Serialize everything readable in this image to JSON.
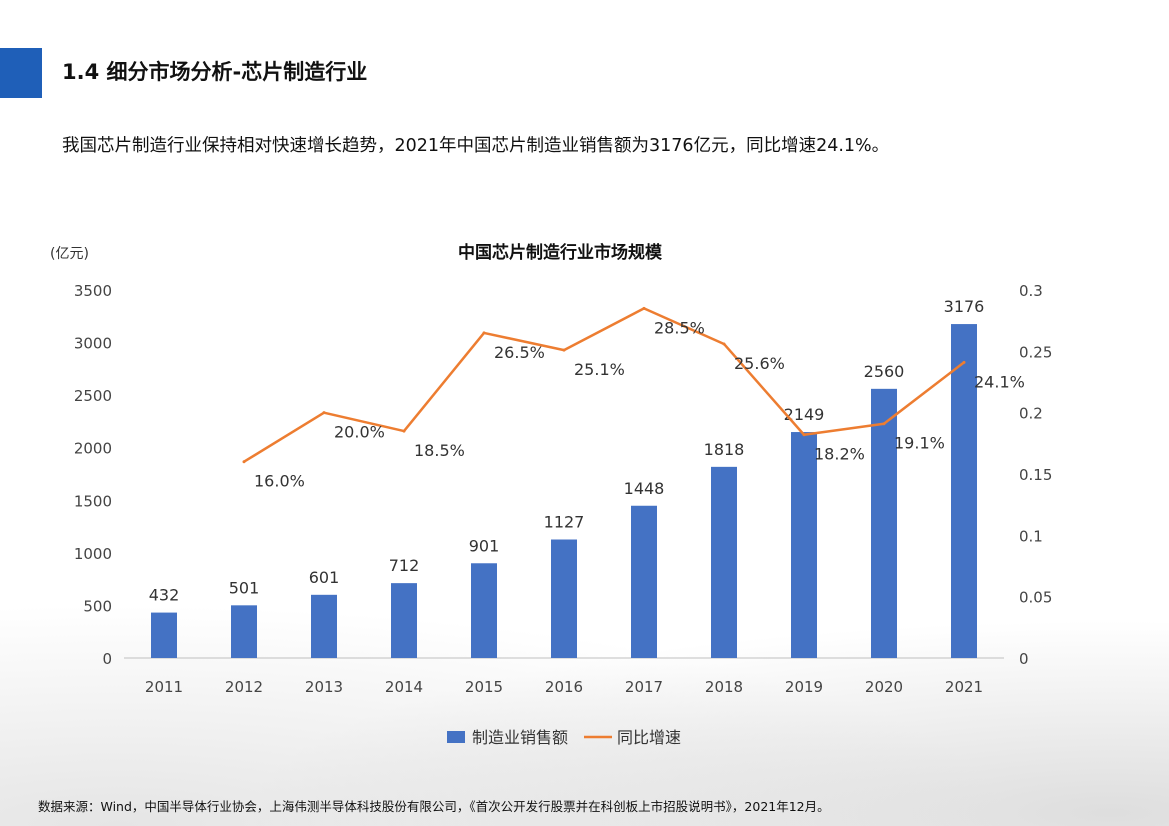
{
  "header": {
    "section_title": "1.4 细分市场分析-芯片制造行业",
    "summary": "我国芯片制造行业保持相对快速增长趋势，2021年中国芯片制造业销售额为3176亿元，同比增速24.1%。"
  },
  "footer": {
    "source": "数据来源：Wind，中国半导体行业协会，上海伟测半导体科技股份有限公司，《首次公开发行股票并在科创板上市招股说明书》，2021年12月。"
  },
  "colors": {
    "accent": "#1f5fb8",
    "bar": "#4472c4",
    "line": "#ed7d31"
  },
  "chart_data": {
    "type": "bar",
    "title": "中国芯片制造行业市场规模",
    "ylabel": "(亿元)",
    "categories": [
      "2011",
      "2012",
      "2013",
      "2014",
      "2015",
      "2016",
      "2017",
      "2018",
      "2019",
      "2020",
      "2021"
    ],
    "series": [
      {
        "name": "制造业销售额",
        "type": "bar",
        "axis": "left",
        "values": [
          432,
          501,
          601,
          712,
          901,
          1127,
          1448,
          1818,
          2149,
          2560,
          3176
        ],
        "labels": [
          "432",
          "501",
          "601",
          "712",
          "901",
          "1127",
          "1448",
          "1818",
          "2149",
          "2560",
          "3176"
        ]
      },
      {
        "name": "同比增速",
        "type": "line",
        "axis": "right",
        "values": [
          null,
          0.16,
          0.2,
          0.185,
          0.265,
          0.251,
          0.285,
          0.256,
          0.182,
          0.191,
          0.241
        ],
        "labels": [
          "",
          "16.0%",
          "20.0%",
          "18.5%",
          "26.5%",
          "25.1%",
          "28.5%",
          "25.6%",
          "18.2%",
          "19.1%",
          "24.1%"
        ]
      }
    ],
    "ylim": [
      0,
      3500
    ],
    "yticks": [
      0,
      500,
      1000,
      1500,
      2000,
      2500,
      3000,
      3500
    ],
    "ytick_labels": [
      "0",
      "500",
      "1000",
      "1500",
      "2000",
      "2500",
      "3000",
      "3500"
    ],
    "y2lim": [
      0,
      0.3
    ],
    "y2ticks": [
      0,
      0.05,
      0.1,
      0.15,
      0.2,
      0.25,
      0.3
    ],
    "y2tick_labels": [
      "0",
      "0.05",
      "0.1",
      "0.15",
      "0.2",
      "0.25",
      "0.3"
    ],
    "grid": false,
    "legend_position": "bottom"
  }
}
